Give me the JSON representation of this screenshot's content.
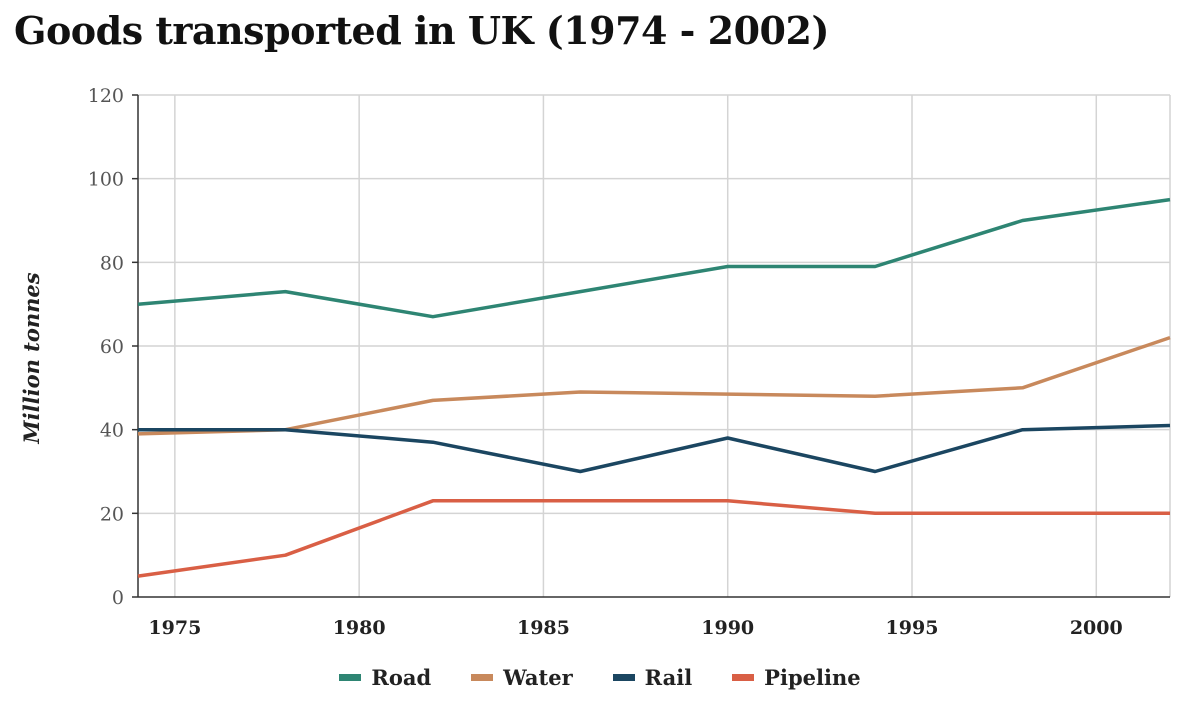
{
  "title": "Goods transported in UK (1974 - 2002)",
  "chart_data": {
    "type": "line",
    "title": "Goods transported in UK (1974 - 2002)",
    "xlabel": "",
    "ylabel": "Million tonnes",
    "xlim": [
      1974,
      2002
    ],
    "ylim": [
      0,
      120
    ],
    "x_ticks": [
      1975,
      1980,
      1985,
      1990,
      1995,
      2000
    ],
    "y_ticks": [
      0,
      20,
      40,
      60,
      80,
      100,
      120
    ],
    "grid": true,
    "legend_position": "bottom",
    "series": [
      {
        "name": "Road",
        "color": "#2e8573",
        "points": [
          [
            1974,
            70
          ],
          [
            1978,
            73
          ],
          [
            1982,
            67
          ],
          [
            1986,
            73
          ],
          [
            1990,
            79
          ],
          [
            1994,
            79
          ],
          [
            1998,
            90
          ],
          [
            2002,
            95
          ]
        ]
      },
      {
        "name": "Water",
        "color": "#c8895c",
        "points": [
          [
            1974,
            39
          ],
          [
            1978,
            40
          ],
          [
            1982,
            47
          ],
          [
            1986,
            49
          ],
          [
            1990,
            48.5
          ],
          [
            1994,
            48
          ],
          [
            1998,
            50
          ],
          [
            2002,
            62
          ]
        ]
      },
      {
        "name": "Rail",
        "color": "#1b4661",
        "points": [
          [
            1974,
            40
          ],
          [
            1978,
            40
          ],
          [
            1982,
            37
          ],
          [
            1986,
            30
          ],
          [
            1990,
            38
          ],
          [
            1994,
            30
          ],
          [
            1998,
            40
          ],
          [
            2002,
            41
          ]
        ]
      },
      {
        "name": "Pipeline",
        "color": "#d95f45",
        "points": [
          [
            1974,
            5
          ],
          [
            1978,
            10
          ],
          [
            1982,
            23
          ],
          [
            1986,
            23
          ],
          [
            1990,
            23
          ],
          [
            1994,
            20
          ],
          [
            1998,
            20
          ],
          [
            2002,
            20
          ]
        ]
      }
    ]
  }
}
